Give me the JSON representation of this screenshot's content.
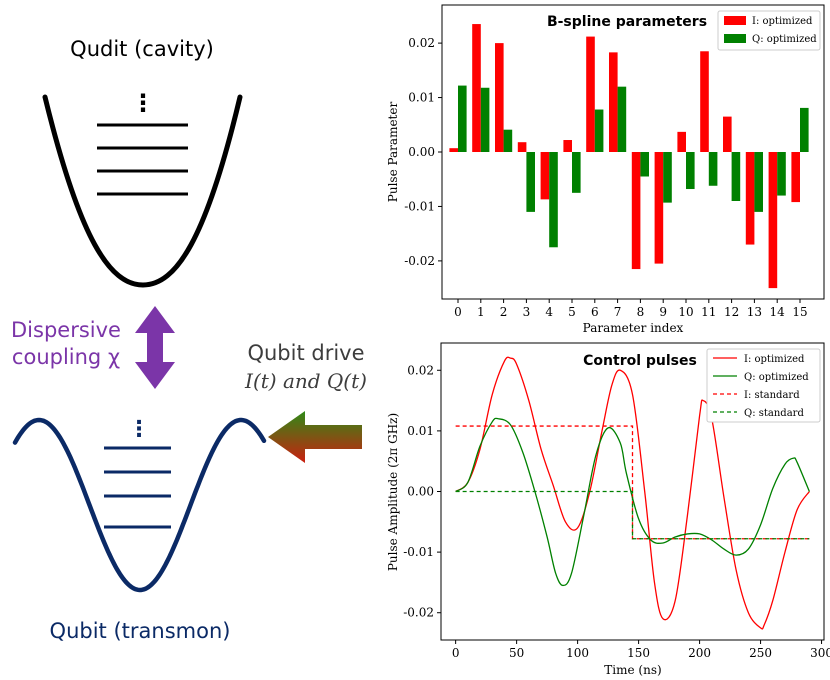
{
  "diagram": {
    "qudit_label": "Qudit (cavity)",
    "qubit_label": "Qubit (transmon)",
    "coupling_label_line1": "Dispersive",
    "coupling_label_line2": "coupling χ",
    "drive_label_line1": "Qubit drive",
    "drive_label_line2": "I(t) and Q(t)",
    "dots_glyph": "⋮",
    "colors": {
      "qudit": "#000000",
      "qubit": "#0b2a66",
      "coupling": "#7b35a8",
      "drive_text": "#3d3d3d",
      "arrow_green": "#2f8a17",
      "arrow_red": "#cc1f10"
    }
  },
  "chart_data": [
    {
      "type": "bar",
      "title": "B-spline parameters",
      "xlabel": "Parameter index",
      "ylabel": "Pulse Parameter",
      "ylim": [
        -0.027,
        0.027
      ],
      "yticks": [
        0.02,
        0.01,
        0.0,
        -0.01,
        -0.02
      ],
      "ytick_labels": [
        "0.02",
        "0.01",
        "0.00",
        "-0.01",
        "-0.02"
      ],
      "categories": [
        "0",
        "1",
        "2",
        "3",
        "4",
        "5",
        "6",
        "7",
        "8",
        "9",
        "10",
        "11",
        "12",
        "13",
        "14",
        "15"
      ],
      "series": [
        {
          "name": "I: optimized",
          "color": "#ff0000",
          "values": [
            0.0007,
            0.0235,
            0.02,
            0.0018,
            -0.0087,
            0.0022,
            0.0212,
            0.0183,
            -0.0215,
            -0.0205,
            0.0037,
            0.0185,
            0.0065,
            -0.017,
            -0.025,
            -0.0092
          ]
        },
        {
          "name": "Q: optimized",
          "color": "#008000",
          "values": [
            0.0122,
            0.0118,
            0.0041,
            -0.011,
            -0.0175,
            -0.0075,
            0.0078,
            0.012,
            -0.0045,
            -0.0093,
            -0.0068,
            -0.0062,
            -0.009,
            -0.011,
            -0.008,
            0.0081
          ]
        }
      ],
      "legend": "top-right"
    },
    {
      "type": "line",
      "title": "Control pulses",
      "xlabel": "Time (ns)",
      "ylabel": "Pulse Amplitude (2π GHz)",
      "xlim": [
        -12,
        302
      ],
      "ylim": [
        -0.0245,
        0.0245
      ],
      "xticks": [
        0,
        50,
        100,
        150,
        200,
        250,
        300
      ],
      "xtick_labels": [
        "0",
        "50",
        "100",
        "150",
        "200",
        "250",
        "300"
      ],
      "yticks": [
        0.02,
        0.01,
        0.0,
        -0.01,
        -0.02
      ],
      "ytick_labels": [
        "0.02",
        "0.01",
        "0.00",
        "-0.01",
        "-0.02"
      ],
      "series": [
        {
          "name": "I: optimized",
          "color": "#ff0000",
          "style": "solid",
          "x": [
            0,
            10,
            20,
            30,
            40,
            45,
            50,
            60,
            70,
            80,
            90,
            100,
            110,
            120,
            128,
            135,
            145,
            155,
            163,
            170,
            180,
            190,
            200,
            203,
            210,
            220,
            230,
            240,
            250,
            253,
            260,
            270,
            280,
            290
          ],
          "y": [
            0.0,
            0.0015,
            0.007,
            0.016,
            0.0215,
            0.022,
            0.021,
            0.015,
            0.007,
            0.001,
            -0.005,
            -0.006,
            0.0,
            0.01,
            0.0175,
            0.02,
            0.016,
            0.0,
            -0.015,
            -0.021,
            -0.018,
            -0.004,
            0.0125,
            0.015,
            0.012,
            -0.001,
            -0.013,
            -0.02,
            -0.0225,
            -0.022,
            -0.018,
            -0.01,
            -0.003,
            0.0
          ]
        },
        {
          "name": "Q: optimized",
          "color": "#008000",
          "style": "solid",
          "x": [
            0,
            10,
            20,
            30,
            35,
            45,
            55,
            65,
            75,
            82,
            88,
            95,
            105,
            115,
            125,
            135,
            140,
            150,
            160,
            170,
            180,
            190,
            200,
            210,
            220,
            230,
            240,
            250,
            260,
            270,
            277,
            280,
            290
          ],
          "y": [
            0.0,
            0.0015,
            0.0075,
            0.0115,
            0.012,
            0.011,
            0.0065,
            0.0,
            -0.0075,
            -0.0135,
            -0.0155,
            -0.0135,
            -0.004,
            0.006,
            0.0105,
            0.008,
            0.003,
            -0.0045,
            -0.008,
            -0.0085,
            -0.0075,
            -0.007,
            -0.007,
            -0.008,
            -0.0095,
            -0.0105,
            -0.0095,
            -0.0055,
            0.0005,
            0.0045,
            0.0055,
            0.0048,
            0.0
          ]
        },
        {
          "name": "I: standard",
          "color": "#ff0000",
          "style": "dashed",
          "x": [
            0,
            145,
            145,
            290
          ],
          "y": [
            0.0108,
            0.0108,
            -0.0078,
            -0.0078
          ]
        },
        {
          "name": "Q: standard",
          "color": "#008000",
          "style": "dashed",
          "x": [
            0,
            145,
            145,
            290
          ],
          "y": [
            0.0,
            0.0,
            -0.0078,
            -0.0078
          ]
        }
      ],
      "legend": "top-right"
    }
  ]
}
